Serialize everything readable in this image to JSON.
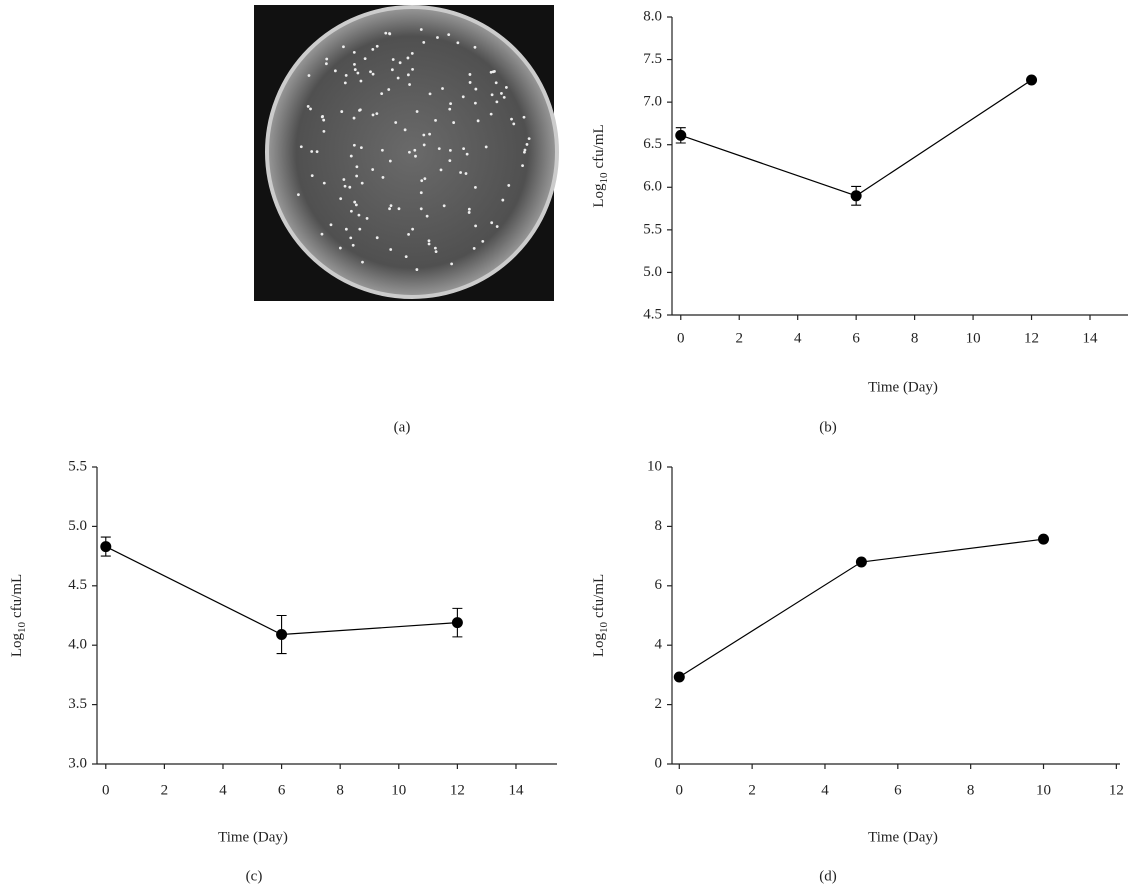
{
  "image_panel": {
    "label": "(a)"
  },
  "chart_data": [
    {
      "type": "line",
      "label": "(b)",
      "xlabel": "Time (Day)",
      "ylabel": {
        "base": "Log",
        "subscript": "10",
        "unit": "cfu/mL"
      },
      "x": [
        0,
        6,
        12
      ],
      "series": [
        {
          "color": "#000000",
          "values": [
            6.61,
            5.9,
            7.26
          ],
          "errors": [
            0.09,
            0.11,
            0.02
          ]
        }
      ],
      "xlim": [
        -0.3,
        15.3
      ],
      "xticks": [
        0,
        2,
        4,
        6,
        8,
        10,
        12,
        14
      ],
      "ylim": [
        4.5,
        8.0
      ],
      "yticks": [
        4.5,
        {
          "value": 5,
          "label": "5.0"
        },
        5.5,
        {
          "value": 6,
          "label": "6.0"
        },
        6.5,
        {
          "value": 7,
          "label": "7.0"
        },
        7.5,
        {
          "value": 8,
          "label": "8.0"
        }
      ]
    },
    {
      "type": "line",
      "label": "(c)",
      "xlabel": "Time (Day)",
      "ylabel": {
        "base": "Log",
        "subscript": "10",
        "unit": "cfu/mL"
      },
      "x": [
        0,
        6,
        12
      ],
      "series": [
        {
          "color": "#000000",
          "values": [
            4.83,
            4.09,
            4.19
          ],
          "errors": [
            0.08,
            0.16,
            0.12
          ]
        }
      ],
      "xlim": [
        -0.3,
        15.4
      ],
      "xticks": [
        0,
        2,
        4,
        6,
        8,
        10,
        12,
        14
      ],
      "ylim": [
        3.0,
        5.5
      ],
      "yticks": [
        {
          "value": 3,
          "label": "3.0"
        },
        3.5,
        {
          "value": 4,
          "label": "4.0"
        },
        4.5,
        {
          "value": 5,
          "label": "5.0"
        },
        5.5
      ]
    },
    {
      "type": "line",
      "label": "(d)",
      "xlabel": "Time (Day)",
      "ylabel": {
        "base": "Log",
        "subscript": "10",
        "unit": "cfu/mL"
      },
      "x": [
        0,
        5,
        10
      ],
      "series": [
        {
          "color": "#000000",
          "values": [
            2.93,
            6.8,
            7.57
          ]
        }
      ],
      "xlim": [
        -0.2,
        12.1
      ],
      "xticks": [
        0,
        2,
        4,
        6,
        8,
        10,
        12
      ],
      "ylim": [
        0,
        10
      ],
      "yticks": [
        0,
        2,
        4,
        6,
        8,
        10
      ]
    }
  ]
}
